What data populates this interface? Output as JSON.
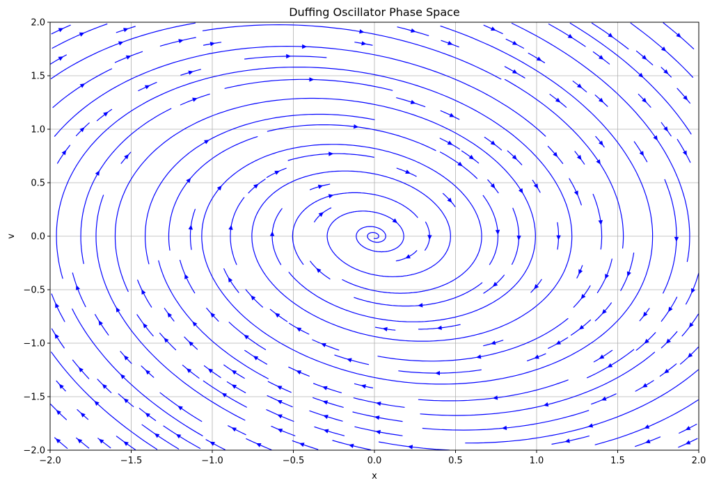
{
  "chart_data": {
    "type": "streamplot",
    "title": "Duffing Oscillator Phase Space",
    "xlabel": "x",
    "ylabel": "v",
    "xlim": [
      -2.0,
      2.0
    ],
    "ylim": [
      -2.0,
      2.0
    ],
    "x_ticks": [
      "−2.0",
      "−1.5",
      "−1.0",
      "−0.5",
      "0.0",
      "0.5",
      "1.0",
      "1.5",
      "2.0"
    ],
    "x_tick_values": [
      -2.0,
      -1.5,
      -1.0,
      -0.5,
      0.0,
      0.5,
      1.0,
      1.5,
      2.0
    ],
    "y_ticks": [
      "−2.0",
      "−1.5",
      "−1.0",
      "−0.5",
      "0.0",
      "0.5",
      "1.0",
      "1.5",
      "2.0"
    ],
    "y_tick_values": [
      -2.0,
      -1.5,
      -1.0,
      -0.5,
      0.0,
      0.5,
      1.0,
      1.5,
      2.0
    ],
    "grid": true,
    "stream_color": "#0000ff",
    "spiral_center": [
      0.0,
      0.0
    ],
    "rotation": "clockwise",
    "direction": "inward spiral toward origin"
  }
}
